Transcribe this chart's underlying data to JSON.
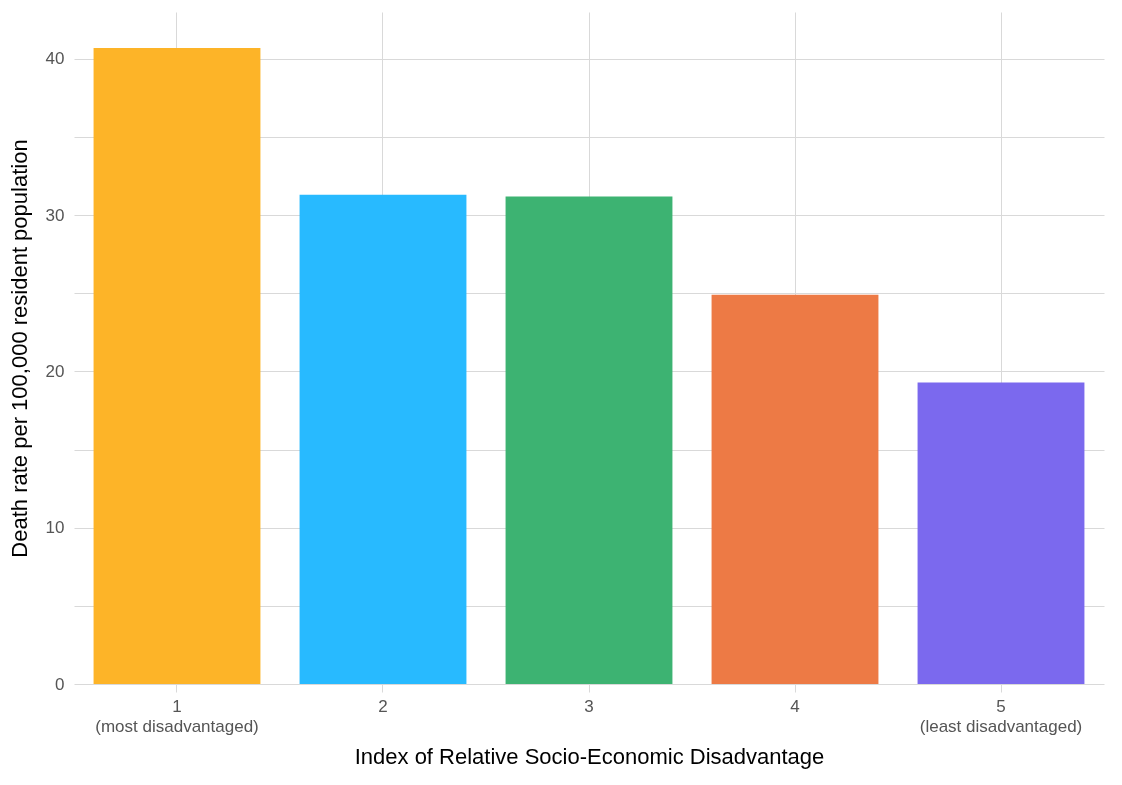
{
  "chart_data": {
    "type": "bar",
    "xlabel": "Index of Relative Socio-Economic Disadvantage",
    "ylabel": "Death rate per 100,000 resident population",
    "categories": [
      "1\n(most disadvantaged)",
      "2",
      "3",
      "4",
      "5\n(least disadvantaged)"
    ],
    "values": [
      40.7,
      31.3,
      31.2,
      24.9,
      19.3
    ],
    "colors": [
      "#fdb428",
      "#28baff",
      "#3db372",
      "#ed7a45",
      "#7b69ee"
    ],
    "ylim": [
      0,
      43
    ],
    "yticks": [
      0,
      {
        "value": 5,
        "label": null
      },
      10,
      {
        "value": 15,
        "label": null
      },
      20,
      {
        "value": 25,
        "label": null
      },
      30,
      {
        "value": 35,
        "label": null
      },
      40
    ],
    "grid": true
  }
}
